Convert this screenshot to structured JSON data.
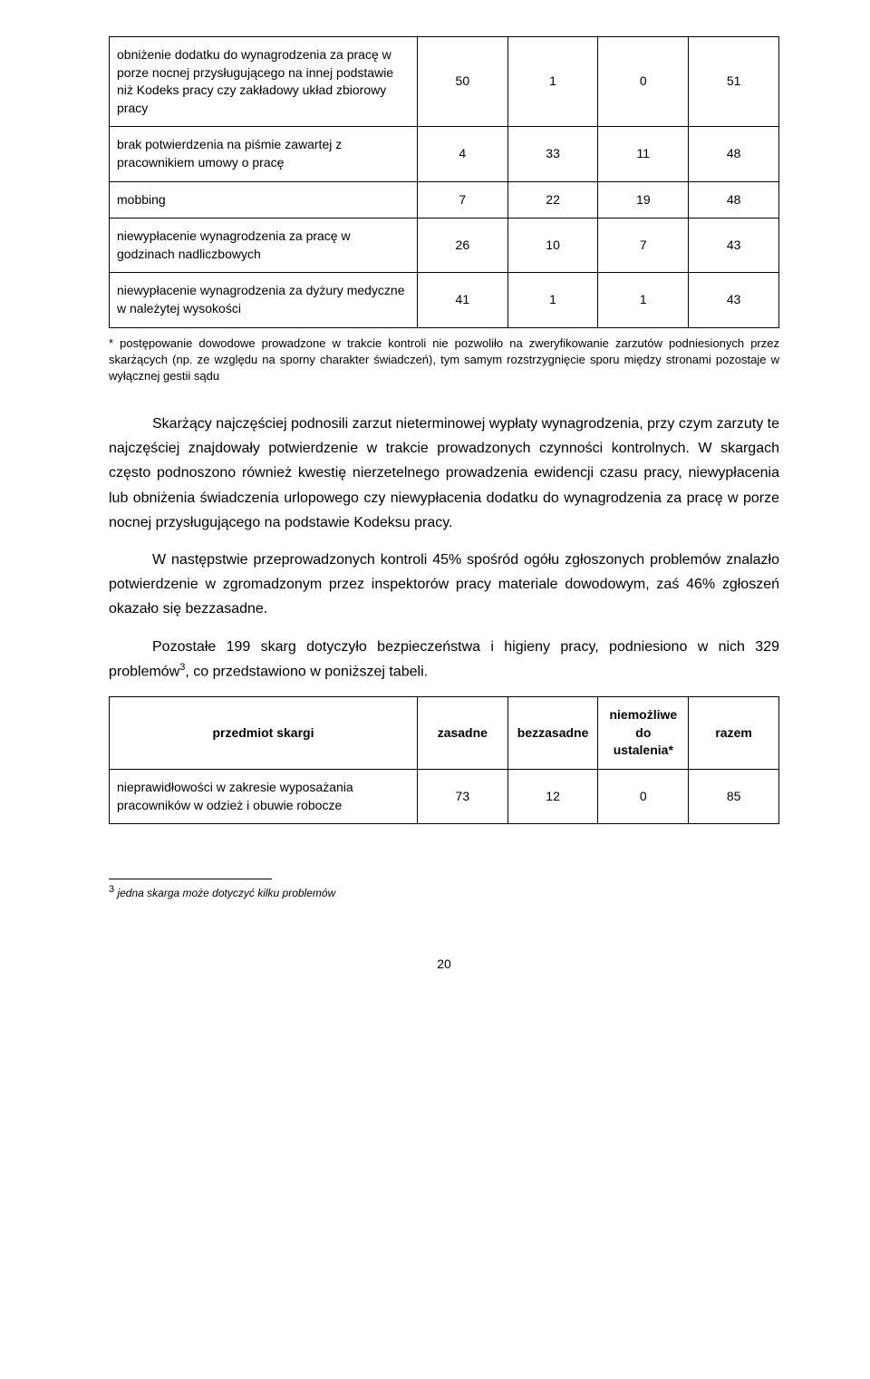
{
  "table1": {
    "rows": [
      {
        "desc": "obniżenie dodatku do wynagrodzenia za pracę w porze nocnej przysługującego na innej podstawie niż Kodeks pracy czy zakładowy układ zbiorowy pracy",
        "c1": "50",
        "c2": "1",
        "c3": "0",
        "c4": "51"
      },
      {
        "desc": "brak potwierdzenia na piśmie zawartej z pracownikiem umowy o pracę",
        "c1": "4",
        "c2": "33",
        "c3": "11",
        "c4": "48"
      },
      {
        "desc": "mobbing",
        "c1": "7",
        "c2": "22",
        "c3": "19",
        "c4": "48"
      },
      {
        "desc": "niewypłacenie wynagrodzenia za pracę w godzinach nadliczbowych",
        "c1": "26",
        "c2": "10",
        "c3": "7",
        "c4": "43"
      },
      {
        "desc": "niewypłacenie wynagrodzenia za dyżury medyczne w należytej wysokości",
        "c1": "41",
        "c2": "1",
        "c3": "1",
        "c4": "43"
      }
    ]
  },
  "footnote_star": "* postępowanie dowodowe prowadzone w trakcie kontroli nie pozwoliło na zweryfikowanie zarzutów podniesionych przez skarżących (np. ze względu na sporny charakter świadczeń), tym samym rozstrzygnięcie sporu między stronami pozostaje w wyłącznej gestii sądu",
  "para1": "Skarżący najczęściej podnosili zarzut nieterminowej wypłaty wynagrodzenia, przy czym zarzuty te najczęściej znajdowały potwierdzenie w trakcie prowadzonych czynności kontrolnych. W skargach często podnoszono również kwestię nierzetelnego prowadzenia ewidencji czasu pracy, niewypłacenia lub obniżenia świadczenia urlopowego czy niewypłacenia dodatku do  wynagrodzenia za pracę w porze nocnej przysługującego na podstawie Kodeksu pracy.",
  "para2": "W następstwie przeprowadzonych kontroli 45% spośród ogółu zgłoszonych problemów znalazło potwierdzenie w zgromadzonym przez inspektorów pracy materiale dowodowym, zaś 46% zgłoszeń okazało się bezzasadne.",
  "para3_a": "Pozostałe 199 skarg dotyczyło bezpieczeństwa i higieny  pracy, podniesiono w nich 329 problemów",
  "para3_b": ", co przedstawiono w poniższej tabeli.",
  "table2": {
    "headers": {
      "h1": "przedmiot skargi",
      "h2": "zasadne",
      "h3": "bezzasadne",
      "h4": "niemożliwe do ustalenia*",
      "h5": "razem"
    },
    "rows": [
      {
        "desc": "nieprawidłowości w zakresie wyposażania pracowników w odzież i obuwie robocze",
        "c1": "73",
        "c2": "12",
        "c3": "0",
        "c4": "85"
      }
    ]
  },
  "bottom_footnote_num": "3",
  "bottom_footnote_text": " jedna skarga może dotyczyć kilku problemów",
  "page_number": "20"
}
